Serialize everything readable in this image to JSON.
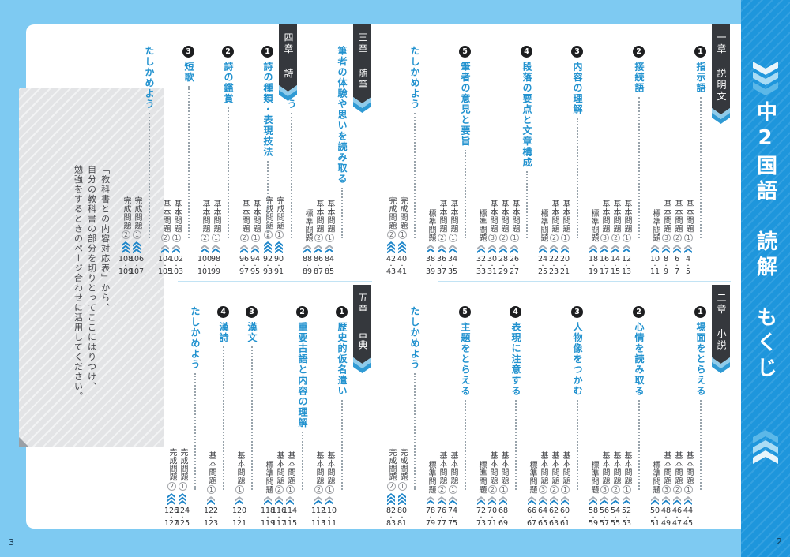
{
  "sidebar": {
    "title": "中2国語　読解　もくじ",
    "page_number": "2"
  },
  "left_page_number": "3",
  "page_separator": "・",
  "note_box": {
    "lines": [
      "「教科書との内容対応表」から、",
      "自分の教科書の部分を切りとってここにはりつけ、",
      "勉強をするときのページ合わせに活用してください。"
    ]
  },
  "colors": {
    "background_blue": "#7ecaf2",
    "sidebar_blue": "#1e96dc",
    "banner_dark": "#35383d",
    "tail_light_blue": "#8fcbea",
    "tail_blue": "#2f9ad4",
    "title_blue": "#2292cf",
    "icon_gray": "#a9adb3",
    "icon_blue": "#1f86c9",
    "note_gray": "#e3e4e6"
  },
  "sections": [
    {
      "banner": "一章 説明文",
      "items": [
        {
          "num": "1",
          "title": "指示語",
          "problems": [
            {
              "label": "基本問題",
              "sub": "1",
              "icon": "basic",
              "pages": [
                "4",
                "5"
              ]
            },
            {
              "label": "基本問題",
              "sub": "2",
              "icon": "basic",
              "pages": [
                "6",
                "7"
              ]
            },
            {
              "label": "基本問題",
              "sub": "3",
              "icon": "basic",
              "pages": [
                "8",
                "9"
              ]
            },
            {
              "label": "標準問題",
              "sub": null,
              "icon": "basic",
              "pages": [
                "10",
                "11"
              ]
            }
          ]
        },
        {
          "num": "2",
          "title": "接続語",
          "problems": [
            {
              "label": "基本問題",
              "sub": "1",
              "icon": "basic",
              "pages": [
                "12",
                "13"
              ]
            },
            {
              "label": "基本問題",
              "sub": "2",
              "icon": "basic",
              "pages": [
                "14",
                "15"
              ]
            },
            {
              "label": "基本問題",
              "sub": "3",
              "icon": "basic",
              "pages": [
                "16",
                "17"
              ]
            },
            {
              "label": "標準問題",
              "sub": null,
              "icon": "basic",
              "pages": [
                "18",
                "19"
              ]
            }
          ]
        },
        {
          "num": "3",
          "title": "内容の理解",
          "problems": [
            {
              "label": "基本問題",
              "sub": "1",
              "icon": "basic",
              "pages": [
                "20",
                "21"
              ]
            },
            {
              "label": "基本問題",
              "sub": "2",
              "icon": "basic",
              "pages": [
                "22",
                "23"
              ]
            },
            {
              "label": "標準問題",
              "sub": null,
              "icon": "basic",
              "pages": [
                "24",
                "25"
              ]
            }
          ]
        },
        {
          "num": "4",
          "title": "段落の要点と文章構成",
          "problems": [
            {
              "label": "基本問題",
              "sub": "1",
              "icon": "basic",
              "pages": [
                "26",
                "27"
              ]
            },
            {
              "label": "基本問題",
              "sub": "2",
              "icon": "basic",
              "pages": [
                "28",
                "29"
              ]
            },
            {
              "label": "基本問題",
              "sub": "3",
              "icon": "basic",
              "pages": [
                "30",
                "31"
              ]
            },
            {
              "label": "標準問題",
              "sub": null,
              "icon": "basic",
              "pages": [
                "32",
                "33"
              ]
            }
          ]
        },
        {
          "num": "5",
          "title": "筆者の意見と要旨",
          "problems": [
            {
              "label": "基本問題",
              "sub": "1",
              "icon": "basic",
              "pages": [
                "34",
                "35"
              ]
            },
            {
              "label": "基本問題",
              "sub": "2",
              "icon": "basic",
              "pages": [
                "36",
                "37"
              ]
            },
            {
              "label": "標準問題",
              "sub": null,
              "icon": "basic",
              "pages": [
                "38",
                "39"
              ]
            }
          ]
        },
        {
          "num": null,
          "title": "たしかめよう",
          "problems": [
            {
              "label": "完成問題",
              "sub": "1",
              "icon": "complete",
              "pages": [
                "40",
                "41"
              ]
            },
            {
              "label": "完成問題",
              "sub": "2",
              "icon": "complete",
              "pages": [
                "42",
                "43"
              ]
            }
          ]
        }
      ]
    },
    {
      "banner": "二章 小説",
      "items": [
        {
          "num": "1",
          "title": "場面をとらえる",
          "problems": [
            {
              "label": "基本問題",
              "sub": "1",
              "icon": "basic",
              "pages": [
                "44",
                "45"
              ]
            },
            {
              "label": "基本問題",
              "sub": "2",
              "icon": "basic",
              "pages": [
                "46",
                "47"
              ]
            },
            {
              "label": "基本問題",
              "sub": "3",
              "icon": "basic",
              "pages": [
                "48",
                "49"
              ]
            },
            {
              "label": "標準問題",
              "sub": null,
              "icon": "basic",
              "pages": [
                "50",
                "51"
              ]
            }
          ]
        },
        {
          "num": "2",
          "title": "心情を読み取る",
          "problems": [
            {
              "label": "基本問題",
              "sub": "1",
              "icon": "basic",
              "pages": [
                "52",
                "53"
              ]
            },
            {
              "label": "基本問題",
              "sub": "2",
              "icon": "basic",
              "pages": [
                "54",
                "55"
              ]
            },
            {
              "label": "基本問題",
              "sub": "3",
              "icon": "basic",
              "pages": [
                "56",
                "57"
              ]
            },
            {
              "label": "標準問題",
              "sub": null,
              "icon": "basic",
              "pages": [
                "58",
                "59"
              ]
            }
          ]
        },
        {
          "num": "3",
          "title": "人物像をつかむ",
          "problems": [
            {
              "label": "基本問題",
              "sub": "1",
              "icon": "basic",
              "pages": [
                "60",
                "61"
              ]
            },
            {
              "label": "基本問題",
              "sub": "2",
              "icon": "basic",
              "pages": [
                "62",
                "63"
              ]
            },
            {
              "label": "基本問題",
              "sub": "3",
              "icon": "basic",
              "pages": [
                "64",
                "65"
              ]
            },
            {
              "label": "標準問題",
              "sub": null,
              "icon": "basic",
              "pages": [
                "66",
                "67"
              ]
            }
          ]
        },
        {
          "num": "4",
          "title": "表現に注意する",
          "problems": [
            {
              "label": "基本問題",
              "sub": "1",
              "icon": "basic",
              "pages": [
                "68",
                "69"
              ]
            },
            {
              "label": "基本問題",
              "sub": "2",
              "icon": "basic",
              "pages": [
                "70",
                "71"
              ]
            },
            {
              "label": "標準問題",
              "sub": null,
              "icon": "basic",
              "pages": [
                "72",
                "73"
              ]
            }
          ]
        },
        {
          "num": "5",
          "title": "主題をとらえる",
          "problems": [
            {
              "label": "基本問題",
              "sub": "1",
              "icon": "basic",
              "pages": [
                "74",
                "75"
              ]
            },
            {
              "label": "基本問題",
              "sub": "2",
              "icon": "basic",
              "pages": [
                "76",
                "77"
              ]
            },
            {
              "label": "標準問題",
              "sub": null,
              "icon": "basic",
              "pages": [
                "78",
                "79"
              ]
            }
          ]
        },
        {
          "num": null,
          "title": "たしかめよう",
          "problems": [
            {
              "label": "完成問題",
              "sub": "1",
              "icon": "complete",
              "pages": [
                "80",
                "81"
              ]
            },
            {
              "label": "完成問題",
              "sub": "2",
              "icon": "complete",
              "pages": [
                "82",
                "83"
              ]
            }
          ]
        }
      ]
    },
    {
      "banner": "三章 随筆",
      "items": [
        {
          "num": null,
          "title": "筆者の体験や思いを読み取る",
          "problems": [
            {
              "label": "基本問題",
              "sub": "1",
              "icon": "basic",
              "pages": [
                "84",
                "85"
              ]
            },
            {
              "label": "基本問題",
              "sub": "2",
              "icon": "basic",
              "pages": [
                "86",
                "87"
              ]
            },
            {
              "label": "標準問題",
              "sub": null,
              "icon": "basic",
              "pages": [
                "88",
                "89"
              ]
            }
          ]
        },
        {
          "num": null,
          "title": "たしかめよう",
          "problems": [
            {
              "label": "完成問題",
              "sub": "1",
              "icon": "complete",
              "pages": [
                "90",
                "91"
              ]
            },
            {
              "label": "完成問題",
              "sub": "2",
              "icon": "complete",
              "pages": [
                "92",
                "93"
              ]
            }
          ]
        }
      ]
    },
    {
      "banner": "四章 詩",
      "items": [
        {
          "num": "1",
          "title": "詩の種類・表現技法",
          "problems": [
            {
              "label": "基本問題",
              "sub": "1",
              "icon": "basic",
              "pages": [
                "94",
                "95"
              ]
            },
            {
              "label": "基本問題",
              "sub": "2",
              "icon": "basic",
              "pages": [
                "96",
                "97"
              ]
            }
          ]
        },
        {
          "num": "2",
          "title": "詩の鑑賞",
          "problems": [
            {
              "label": "基本問題",
              "sub": "1",
              "icon": "basic",
              "pages": [
                "98",
                "99"
              ]
            },
            {
              "label": "基本問題",
              "sub": "2",
              "icon": "basic",
              "pages": [
                "100",
                "101"
              ]
            }
          ]
        },
        {
          "num": "3",
          "title": "短歌",
          "problems": [
            {
              "label": "基本問題",
              "sub": "1",
              "icon": "basic",
              "pages": [
                "102",
                "103"
              ]
            },
            {
              "label": "基本問題",
              "sub": "2",
              "icon": "basic",
              "pages": [
                "104",
                "105"
              ]
            }
          ]
        },
        {
          "num": null,
          "title": "たしかめよう",
          "problems": [
            {
              "label": "完成問題",
              "sub": "1",
              "icon": "complete",
              "pages": [
                "106",
                "107"
              ]
            },
            {
              "label": "完成問題",
              "sub": "2",
              "icon": "complete",
              "pages": [
                "108",
                "109"
              ]
            }
          ]
        }
      ]
    },
    {
      "banner": "五章 古典",
      "items": [
        {
          "num": "1",
          "title": "歴史的仮名遣い",
          "problems": [
            {
              "label": "基本問題",
              "sub": "1",
              "icon": "basic",
              "pages": [
                "110",
                "111"
              ]
            },
            {
              "label": "基本問題",
              "sub": "2",
              "icon": "basic",
              "pages": [
                "112",
                "113"
              ]
            }
          ]
        },
        {
          "num": "2",
          "title": "重要古語と内容の理解",
          "problems": [
            {
              "label": "基本問題",
              "sub": "1",
              "icon": "basic",
              "pages": [
                "114",
                "115"
              ]
            },
            {
              "label": "基本問題",
              "sub": "2",
              "icon": "basic",
              "pages": [
                "116",
                "117"
              ]
            },
            {
              "label": "標準問題",
              "sub": null,
              "icon": "basic",
              "pages": [
                "118",
                "119"
              ]
            }
          ]
        },
        {
          "num": "3",
          "title": "漢文",
          "problems": [
            {
              "label": "基本問題",
              "sub": "1",
              "icon": "basic",
              "pages": [
                "120",
                "121"
              ]
            }
          ]
        },
        {
          "num": "4",
          "title": "漢詩",
          "problems": [
            {
              "label": "基本問題",
              "sub": "1",
              "icon": "basic",
              "pages": [
                "122",
                "123"
              ]
            }
          ]
        },
        {
          "num": null,
          "title": "たしかめよう",
          "problems": [
            {
              "label": "完成問題",
              "sub": "1",
              "icon": "complete",
              "pages": [
                "124",
                "125"
              ]
            },
            {
              "label": "完成問題",
              "sub": "2",
              "icon": "complete",
              "pages": [
                "126",
                "127"
              ]
            }
          ]
        }
      ]
    }
  ]
}
